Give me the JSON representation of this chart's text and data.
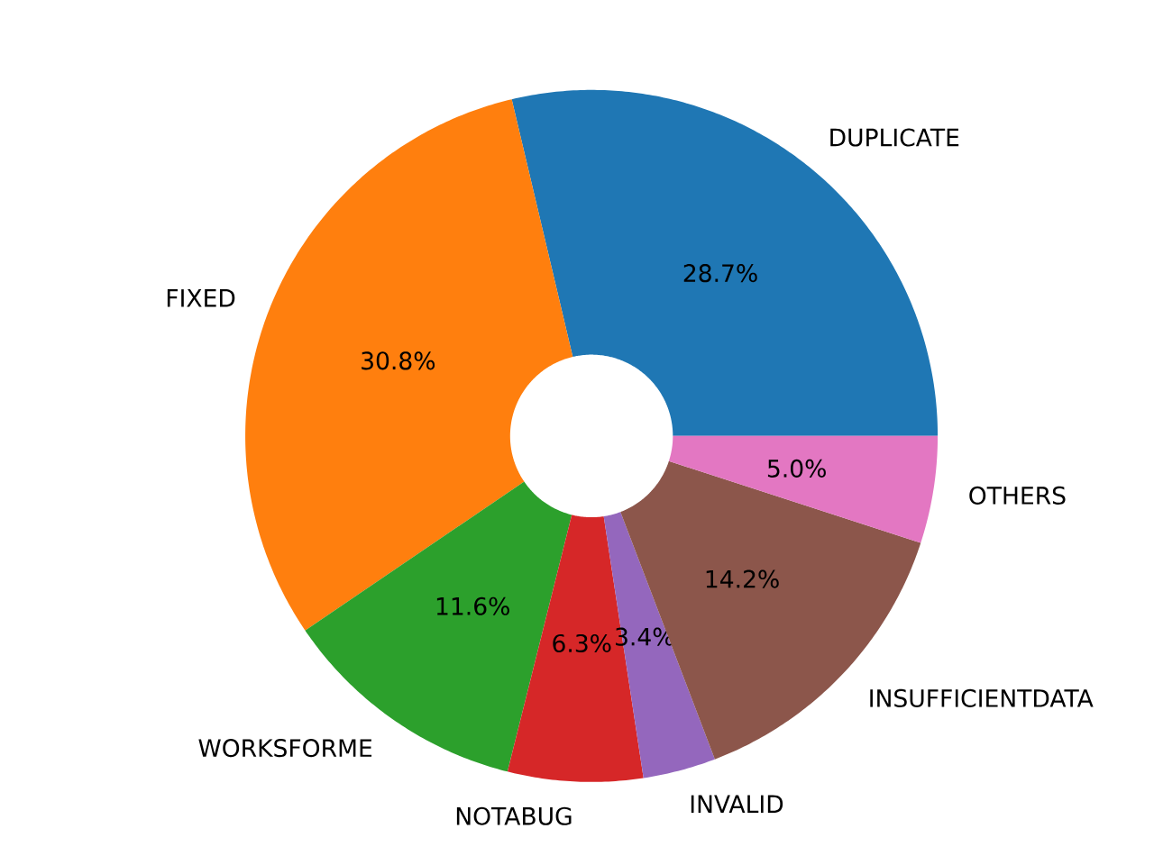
{
  "chart_data": {
    "type": "donut",
    "categories": [
      "DUPLICATE",
      "FIXED",
      "WORKSFORME",
      "NOTABUG",
      "INVALID",
      "INSUFFICIENTDATA",
      "OTHERS"
    ],
    "values": [
      28.7,
      30.8,
      11.6,
      6.3,
      3.4,
      14.2,
      5.0
    ],
    "value_labels": [
      "28.7%",
      "30.8%",
      "11.6%",
      "6.3%",
      "3.4%",
      "14.2%",
      "5.0%"
    ],
    "colors": [
      "#1f77b4",
      "#ff7f0e",
      "#2ca02c",
      "#d62728",
      "#9467bd",
      "#8c564b",
      "#e377c2"
    ]
  }
}
